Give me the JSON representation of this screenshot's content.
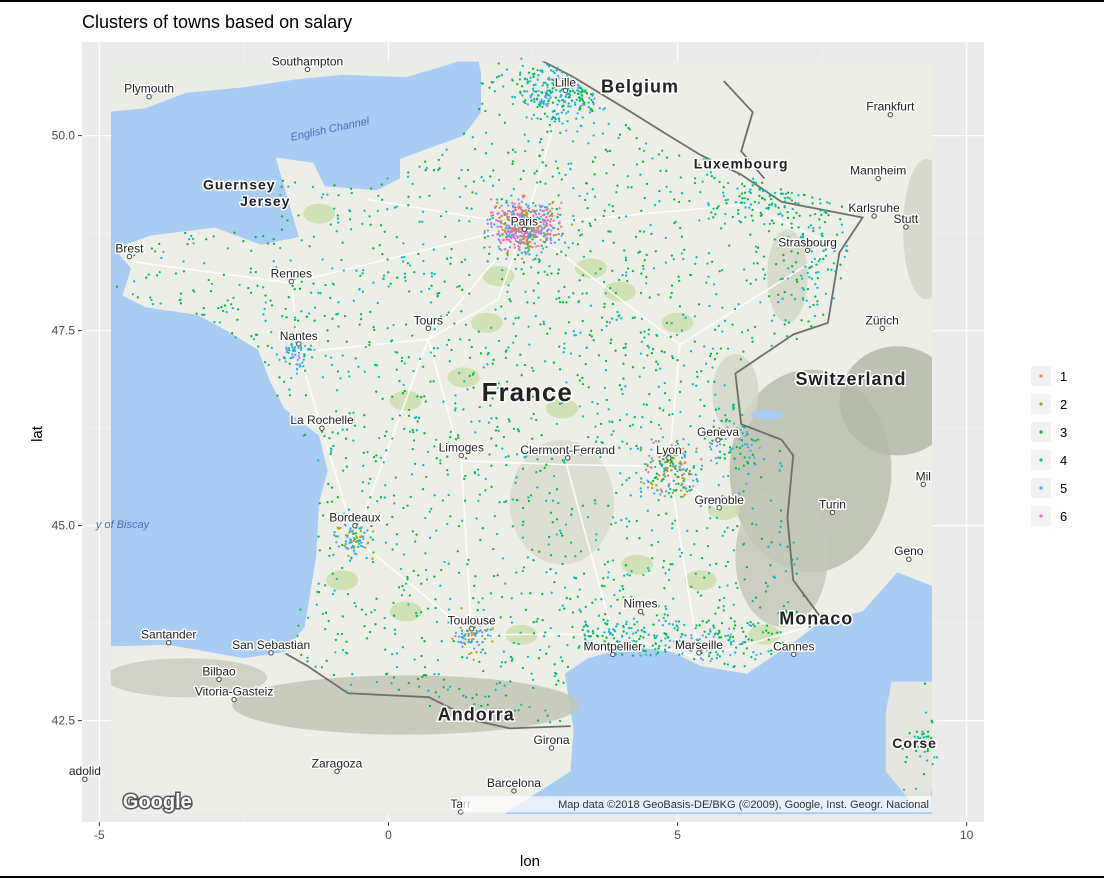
{
  "chart_data": {
    "type": "scatter",
    "title": "Clusters of towns based on salary",
    "xlabel": "lon",
    "ylabel": "lat",
    "xlim": [
      -5.3,
      10.3
    ],
    "ylim": [
      41.2,
      51.2
    ],
    "x_ticks": [
      -5,
      0,
      5,
      10
    ],
    "x_tick_labels": [
      "-5",
      "0",
      "5",
      "10"
    ],
    "y_ticks": [
      42.5,
      45.0,
      47.5,
      50.0
    ],
    "y_tick_labels": [
      "42.5",
      "45.0",
      "47.5",
      "50.0"
    ],
    "grid": true,
    "legend_position": "right",
    "legend_entries": [
      "1",
      "2",
      "3",
      "4",
      "5",
      "6"
    ],
    "colors": {
      "1": "#F8766D",
      "2": "#B79F00",
      "3": "#00BA38",
      "4": "#00BFC4",
      "5": "#619CFF",
      "6": "#F564E3"
    },
    "dominant_clusters": [
      "3",
      "4"
    ],
    "dense_areas": [
      {
        "label": "Paris",
        "lon": 2.35,
        "lat": 48.85,
        "cluster_mix": [
          "1",
          "2",
          "5",
          "6"
        ]
      },
      {
        "label": "Lyon",
        "lon": 4.85,
        "lat": 45.76,
        "cluster_mix": [
          "2",
          "5"
        ]
      }
    ],
    "basemap": {
      "extent": {
        "lon": [
          -4.8,
          9.4
        ],
        "lat": [
          41.3,
          50.95
        ]
      },
      "labels": [
        {
          "text": "Southampton",
          "lon": -1.4,
          "lat": 50.9,
          "type": "city"
        },
        {
          "text": "Plymouth",
          "lon": -4.14,
          "lat": 50.55,
          "type": "city"
        },
        {
          "text": "Lille",
          "lon": 3.06,
          "lat": 50.63,
          "type": "city"
        },
        {
          "text": "Belgium",
          "lon": 4.35,
          "lat": 50.55,
          "type": "country"
        },
        {
          "text": "Frankfurt",
          "lon": 8.68,
          "lat": 50.32,
          "type": "city"
        },
        {
          "text": "English Channel",
          "lon": -1.0,
          "lat": 50.04,
          "type": "sea"
        },
        {
          "text": "Luxembourg",
          "lon": 6.1,
          "lat": 49.58,
          "type": "country-small"
        },
        {
          "text": "Mannheim",
          "lon": 8.47,
          "lat": 49.5,
          "type": "city"
        },
        {
          "text": "Guernsey",
          "lon": -2.58,
          "lat": 49.31,
          "type": "island"
        },
        {
          "text": "Jersey",
          "lon": -2.13,
          "lat": 49.1,
          "type": "island"
        },
        {
          "text": "Karlsruhe",
          "lon": 8.4,
          "lat": 49.02,
          "type": "city"
        },
        {
          "text": "Stutt",
          "lon": 8.95,
          "lat": 48.88,
          "type": "city"
        },
        {
          "text": "Paris",
          "lon": 2.35,
          "lat": 48.85,
          "type": "city"
        },
        {
          "text": "Brest",
          "lon": -4.48,
          "lat": 48.5,
          "type": "city"
        },
        {
          "text": "Strasbourg",
          "lon": 7.25,
          "lat": 48.58,
          "type": "city"
        },
        {
          "text": "Rennes",
          "lon": -1.68,
          "lat": 48.18,
          "type": "city"
        },
        {
          "text": "Tours",
          "lon": 0.69,
          "lat": 47.58,
          "type": "city"
        },
        {
          "text": "Zürich",
          "lon": 8.54,
          "lat": 47.58,
          "type": "city"
        },
        {
          "text": "Nantes",
          "lon": -1.55,
          "lat": 47.38,
          "type": "city"
        },
        {
          "text": "France",
          "lon": 2.4,
          "lat": 46.6,
          "type": "country-large"
        },
        {
          "text": "Switzerland",
          "lon": 8.0,
          "lat": 46.8,
          "type": "country"
        },
        {
          "text": "La Rochelle",
          "lon": -1.15,
          "lat": 46.3,
          "type": "city"
        },
        {
          "text": "Geneva",
          "lon": 5.7,
          "lat": 46.15,
          "type": "city"
        },
        {
          "text": "Limoges",
          "lon": 1.26,
          "lat": 45.95,
          "type": "city"
        },
        {
          "text": "Clermont-Ferrand",
          "lon": 3.1,
          "lat": 45.92,
          "type": "city"
        },
        {
          "text": "Lyon",
          "lon": 4.85,
          "lat": 45.92,
          "type": "city"
        },
        {
          "text": "Mil",
          "lon": 9.25,
          "lat": 45.58,
          "type": "city"
        },
        {
          "text": "Grenoble",
          "lon": 5.72,
          "lat": 45.28,
          "type": "city"
        },
        {
          "text": "Turin",
          "lon": 7.68,
          "lat": 45.22,
          "type": "city"
        },
        {
          "text": "Bordeaux",
          "lon": -0.58,
          "lat": 45.05,
          "type": "city"
        },
        {
          "text": "y of Biscay",
          "lon": -4.6,
          "lat": 44.97,
          "type": "sea"
        },
        {
          "text": "Geno",
          "lon": 9.0,
          "lat": 44.62,
          "type": "city"
        },
        {
          "text": "Nimes",
          "lon": 4.36,
          "lat": 43.95,
          "type": "city"
        },
        {
          "text": "Toulouse",
          "lon": 1.44,
          "lat": 43.73,
          "type": "city"
        },
        {
          "text": "Monaco",
          "lon": 7.4,
          "lat": 43.73,
          "type": "country"
        },
        {
          "text": "Santander",
          "lon": -3.8,
          "lat": 43.55,
          "type": "city"
        },
        {
          "text": "San Sebastian",
          "lon": -2.03,
          "lat": 43.42,
          "type": "city"
        },
        {
          "text": "Montpellier",
          "lon": 3.88,
          "lat": 43.4,
          "type": "city"
        },
        {
          "text": "Marseille",
          "lon": 5.37,
          "lat": 43.42,
          "type": "city"
        },
        {
          "text": "Cannes",
          "lon": 7.01,
          "lat": 43.4,
          "type": "city"
        },
        {
          "text": "Bilbao",
          "lon": -2.93,
          "lat": 43.08,
          "type": "city"
        },
        {
          "text": "Vitoria-Gasteiz",
          "lon": -2.67,
          "lat": 42.82,
          "type": "city"
        },
        {
          "text": "Andorra",
          "lon": 1.52,
          "lat": 42.5,
          "type": "country"
        },
        {
          "text": "Girona",
          "lon": 2.82,
          "lat": 42.2,
          "type": "city"
        },
        {
          "text": "Corse",
          "lon": 9.1,
          "lat": 42.15,
          "type": "island"
        },
        {
          "text": "Zaragoza",
          "lon": -0.89,
          "lat": 41.9,
          "type": "city"
        },
        {
          "text": "adolid",
          "lon": -5.25,
          "lat": 41.8,
          "type": "city"
        },
        {
          "text": "Barcelona",
          "lon": 2.17,
          "lat": 41.65,
          "type": "city"
        },
        {
          "text": "Tarr",
          "lon": 1.25,
          "lat": 41.38,
          "type": "city"
        }
      ],
      "attribution": "Map data ©2018 GeoBasis-DE/BKG (©2009), Google, Inst. Geogr. Nacional",
      "logo_text": "Google"
    }
  }
}
